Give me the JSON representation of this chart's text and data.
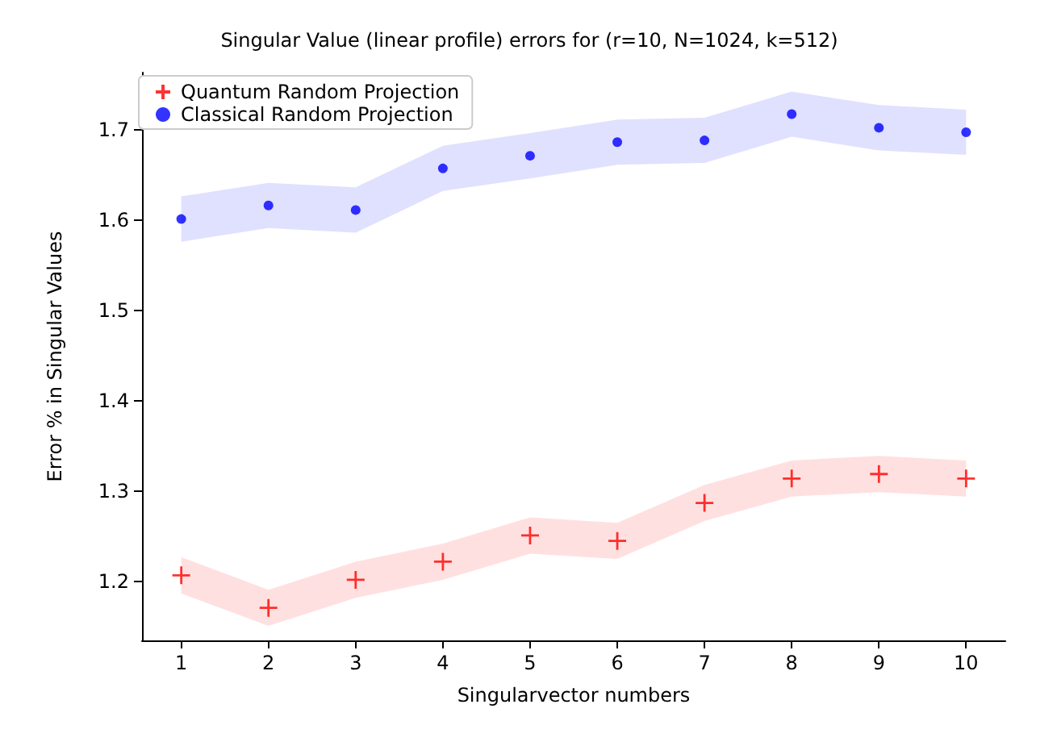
{
  "chart_data": {
    "type": "scatter",
    "title": "Singular Value (linear profile) errors for (r=10, N=1024, k=512)",
    "xlabel": "Singularvector numbers",
    "ylabel": "Error % in Singular Values",
    "x": [
      1,
      2,
      3,
      4,
      5,
      6,
      7,
      8,
      9,
      10
    ],
    "series": [
      {
        "name": "Quantum Random Projection",
        "color": "#ff0000",
        "marker": "cross",
        "values": [
          1.207,
          1.171,
          1.202,
          1.222,
          1.251,
          1.245,
          1.287,
          1.314,
          1.319,
          1.314
        ],
        "lower": [
          1.187,
          1.151,
          1.182,
          1.202,
          1.231,
          1.225,
          1.267,
          1.294,
          1.299,
          1.294
        ],
        "upper": [
          1.227,
          1.191,
          1.222,
          1.242,
          1.271,
          1.265,
          1.307,
          1.334,
          1.339,
          1.334
        ]
      },
      {
        "name": "Classical Random Projection",
        "color": "#0000ff",
        "marker": "circle",
        "values": [
          1.601,
          1.616,
          1.611,
          1.657,
          1.671,
          1.686,
          1.688,
          1.717,
          1.702,
          1.697
        ],
        "lower": [
          1.576,
          1.591,
          1.586,
          1.632,
          1.646,
          1.661,
          1.663,
          1.692,
          1.677,
          1.672
        ],
        "upper": [
          1.626,
          1.641,
          1.636,
          1.682,
          1.696,
          1.711,
          1.713,
          1.742,
          1.727,
          1.722
        ]
      }
    ],
    "xlim": [
      0.55,
      10.45
    ],
    "xticks": [
      1,
      2,
      3,
      4,
      5,
      6,
      7,
      8,
      9,
      10
    ],
    "ylim": [
      1.135,
      1.763
    ],
    "yticks": [
      1.2,
      1.3,
      1.4,
      1.5,
      1.6,
      1.7
    ],
    "grid": false,
    "legend": "top left"
  }
}
